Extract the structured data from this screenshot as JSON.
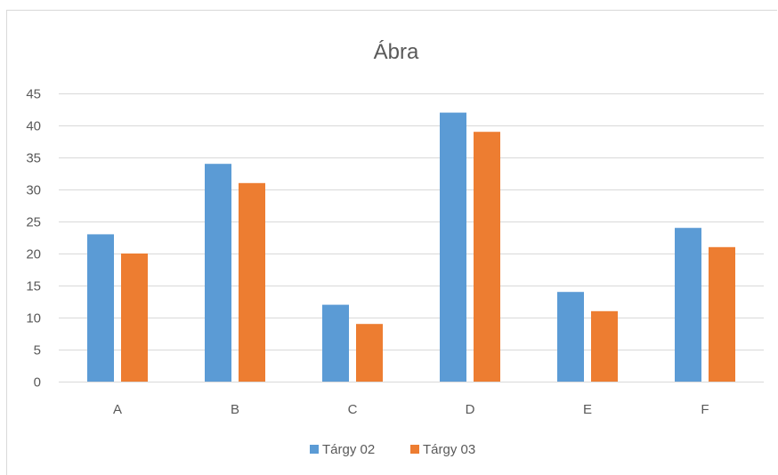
{
  "chart_data": {
    "type": "bar",
    "title": "Ábra",
    "categories": [
      "A",
      "B",
      "C",
      "D",
      "E",
      "F"
    ],
    "series": [
      {
        "name": "Tárgy 02",
        "values": [
          23,
          34,
          12,
          42,
          14,
          24
        ],
        "color": "#5b9bd5"
      },
      {
        "name": "Tárgy 03",
        "values": [
          20,
          31,
          9,
          39,
          11,
          21
        ],
        "color": "#ed7d31"
      }
    ],
    "ylim": [
      0,
      45
    ],
    "yticks": [
      0,
      5,
      10,
      15,
      20,
      25,
      30,
      35,
      40,
      45
    ],
    "grid": true,
    "legend": "bottom"
  }
}
